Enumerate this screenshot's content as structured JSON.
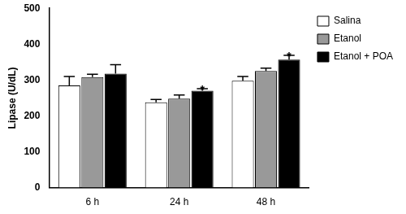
{
  "chart_data": {
    "type": "bar",
    "y_label": "Lipase (U/dL)",
    "categories": [
      "6 h",
      "24 h",
      "48 h"
    ],
    "series": [
      {
        "name": "Salina",
        "color": "#ffffff",
        "values": [
          285,
          238,
          298
        ],
        "errors": [
          25,
          8,
          12
        ]
      },
      {
        "name": "Etanol",
        "color": "#999999",
        "values": [
          308,
          248,
          325
        ],
        "errors": [
          8,
          10,
          8
        ]
      },
      {
        "name": "Etanol + POA",
        "color": "#000000",
        "values": [
          318,
          270,
          357
        ],
        "errors": [
          25,
          6,
          12
        ]
      }
    ],
    "annotations": [
      {
        "text": "*",
        "category": "24 h",
        "series": "Etanol + POA"
      },
      {
        "text": "*",
        "category": "48 h",
        "series": "Etanol + POA"
      }
    ],
    "ylim": [
      0,
      500
    ],
    "yticks": [
      0,
      100,
      200,
      300,
      400,
      500
    ],
    "grid": false,
    "legend": "top-right"
  }
}
